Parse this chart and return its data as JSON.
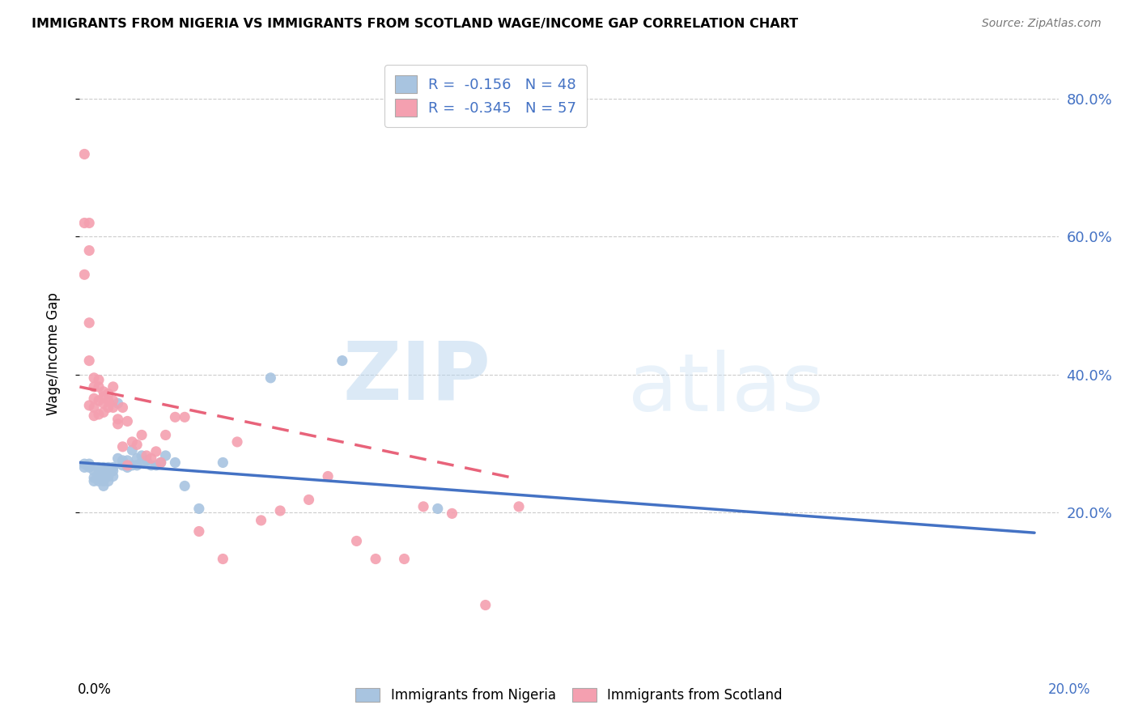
{
  "title": "IMMIGRANTS FROM NIGERIA VS IMMIGRANTS FROM SCOTLAND WAGE/INCOME GAP CORRELATION CHART",
  "source": "Source: ZipAtlas.com",
  "ylabel": "Wage/Income Gap",
  "legend1_label": "R =  -0.156   N = 48",
  "legend2_label": "R =  -0.345   N = 57",
  "nigeria_color": "#a8c4e0",
  "scotland_color": "#f4a0b0",
  "nigeria_line_color": "#4472c4",
  "scotland_line_color": "#e8637a",
  "watermark_zip": "ZIP",
  "watermark_atlas": "atlas",
  "nigeria_scatter_x": [
    0.001,
    0.001,
    0.002,
    0.002,
    0.003,
    0.003,
    0.003,
    0.004,
    0.004,
    0.004,
    0.004,
    0.005,
    0.005,
    0.005,
    0.005,
    0.005,
    0.005,
    0.006,
    0.006,
    0.006,
    0.006,
    0.007,
    0.007,
    0.007,
    0.008,
    0.008,
    0.009,
    0.009,
    0.01,
    0.01,
    0.011,
    0.011,
    0.012,
    0.012,
    0.013,
    0.013,
    0.014,
    0.015,
    0.016,
    0.017,
    0.018,
    0.02,
    0.022,
    0.025,
    0.03,
    0.04,
    0.055,
    0.075
  ],
  "nigeria_scatter_y": [
    0.27,
    0.265,
    0.27,
    0.265,
    0.25,
    0.245,
    0.26,
    0.265,
    0.26,
    0.255,
    0.245,
    0.265,
    0.26,
    0.255,
    0.25,
    0.245,
    0.238,
    0.265,
    0.258,
    0.252,
    0.245,
    0.265,
    0.26,
    0.252,
    0.358,
    0.278,
    0.275,
    0.268,
    0.275,
    0.265,
    0.29,
    0.268,
    0.278,
    0.268,
    0.282,
    0.272,
    0.275,
    0.268,
    0.268,
    0.272,
    0.282,
    0.272,
    0.238,
    0.205,
    0.272,
    0.395,
    0.42,
    0.205
  ],
  "scotland_scatter_x": [
    0.001,
    0.001,
    0.001,
    0.002,
    0.002,
    0.002,
    0.002,
    0.002,
    0.003,
    0.003,
    0.003,
    0.003,
    0.003,
    0.004,
    0.004,
    0.004,
    0.004,
    0.005,
    0.005,
    0.005,
    0.005,
    0.006,
    0.006,
    0.006,
    0.007,
    0.007,
    0.007,
    0.008,
    0.008,
    0.009,
    0.009,
    0.01,
    0.01,
    0.011,
    0.012,
    0.013,
    0.014,
    0.015,
    0.016,
    0.017,
    0.018,
    0.02,
    0.022,
    0.025,
    0.03,
    0.033,
    0.038,
    0.042,
    0.048,
    0.052,
    0.058,
    0.062,
    0.068,
    0.072,
    0.078,
    0.085,
    0.092
  ],
  "scotland_scatter_y": [
    0.72,
    0.62,
    0.545,
    0.62,
    0.58,
    0.475,
    0.42,
    0.355,
    0.395,
    0.382,
    0.365,
    0.352,
    0.34,
    0.392,
    0.382,
    0.362,
    0.342,
    0.375,
    0.368,
    0.358,
    0.345,
    0.372,
    0.362,
    0.352,
    0.382,
    0.362,
    0.352,
    0.335,
    0.328,
    0.352,
    0.295,
    0.332,
    0.268,
    0.302,
    0.298,
    0.312,
    0.282,
    0.278,
    0.288,
    0.272,
    0.312,
    0.338,
    0.338,
    0.172,
    0.132,
    0.302,
    0.188,
    0.202,
    0.218,
    0.252,
    0.158,
    0.132,
    0.132,
    0.208,
    0.198,
    0.065,
    0.208
  ],
  "nigeria_line_x": [
    0.0,
    0.2
  ],
  "nigeria_line_y": [
    0.272,
    0.17
  ],
  "scotland_line_x": [
    0.0,
    0.092
  ],
  "scotland_line_y": [
    0.382,
    0.248
  ],
  "xlim": [
    0.0,
    0.205
  ],
  "ylim": [
    0.0,
    0.86
  ],
  "ytick_vals": [
    0.2,
    0.4,
    0.6,
    0.8
  ],
  "ytick_labels": [
    "20.0%",
    "40.0%",
    "60.0%",
    "80.0%"
  ]
}
